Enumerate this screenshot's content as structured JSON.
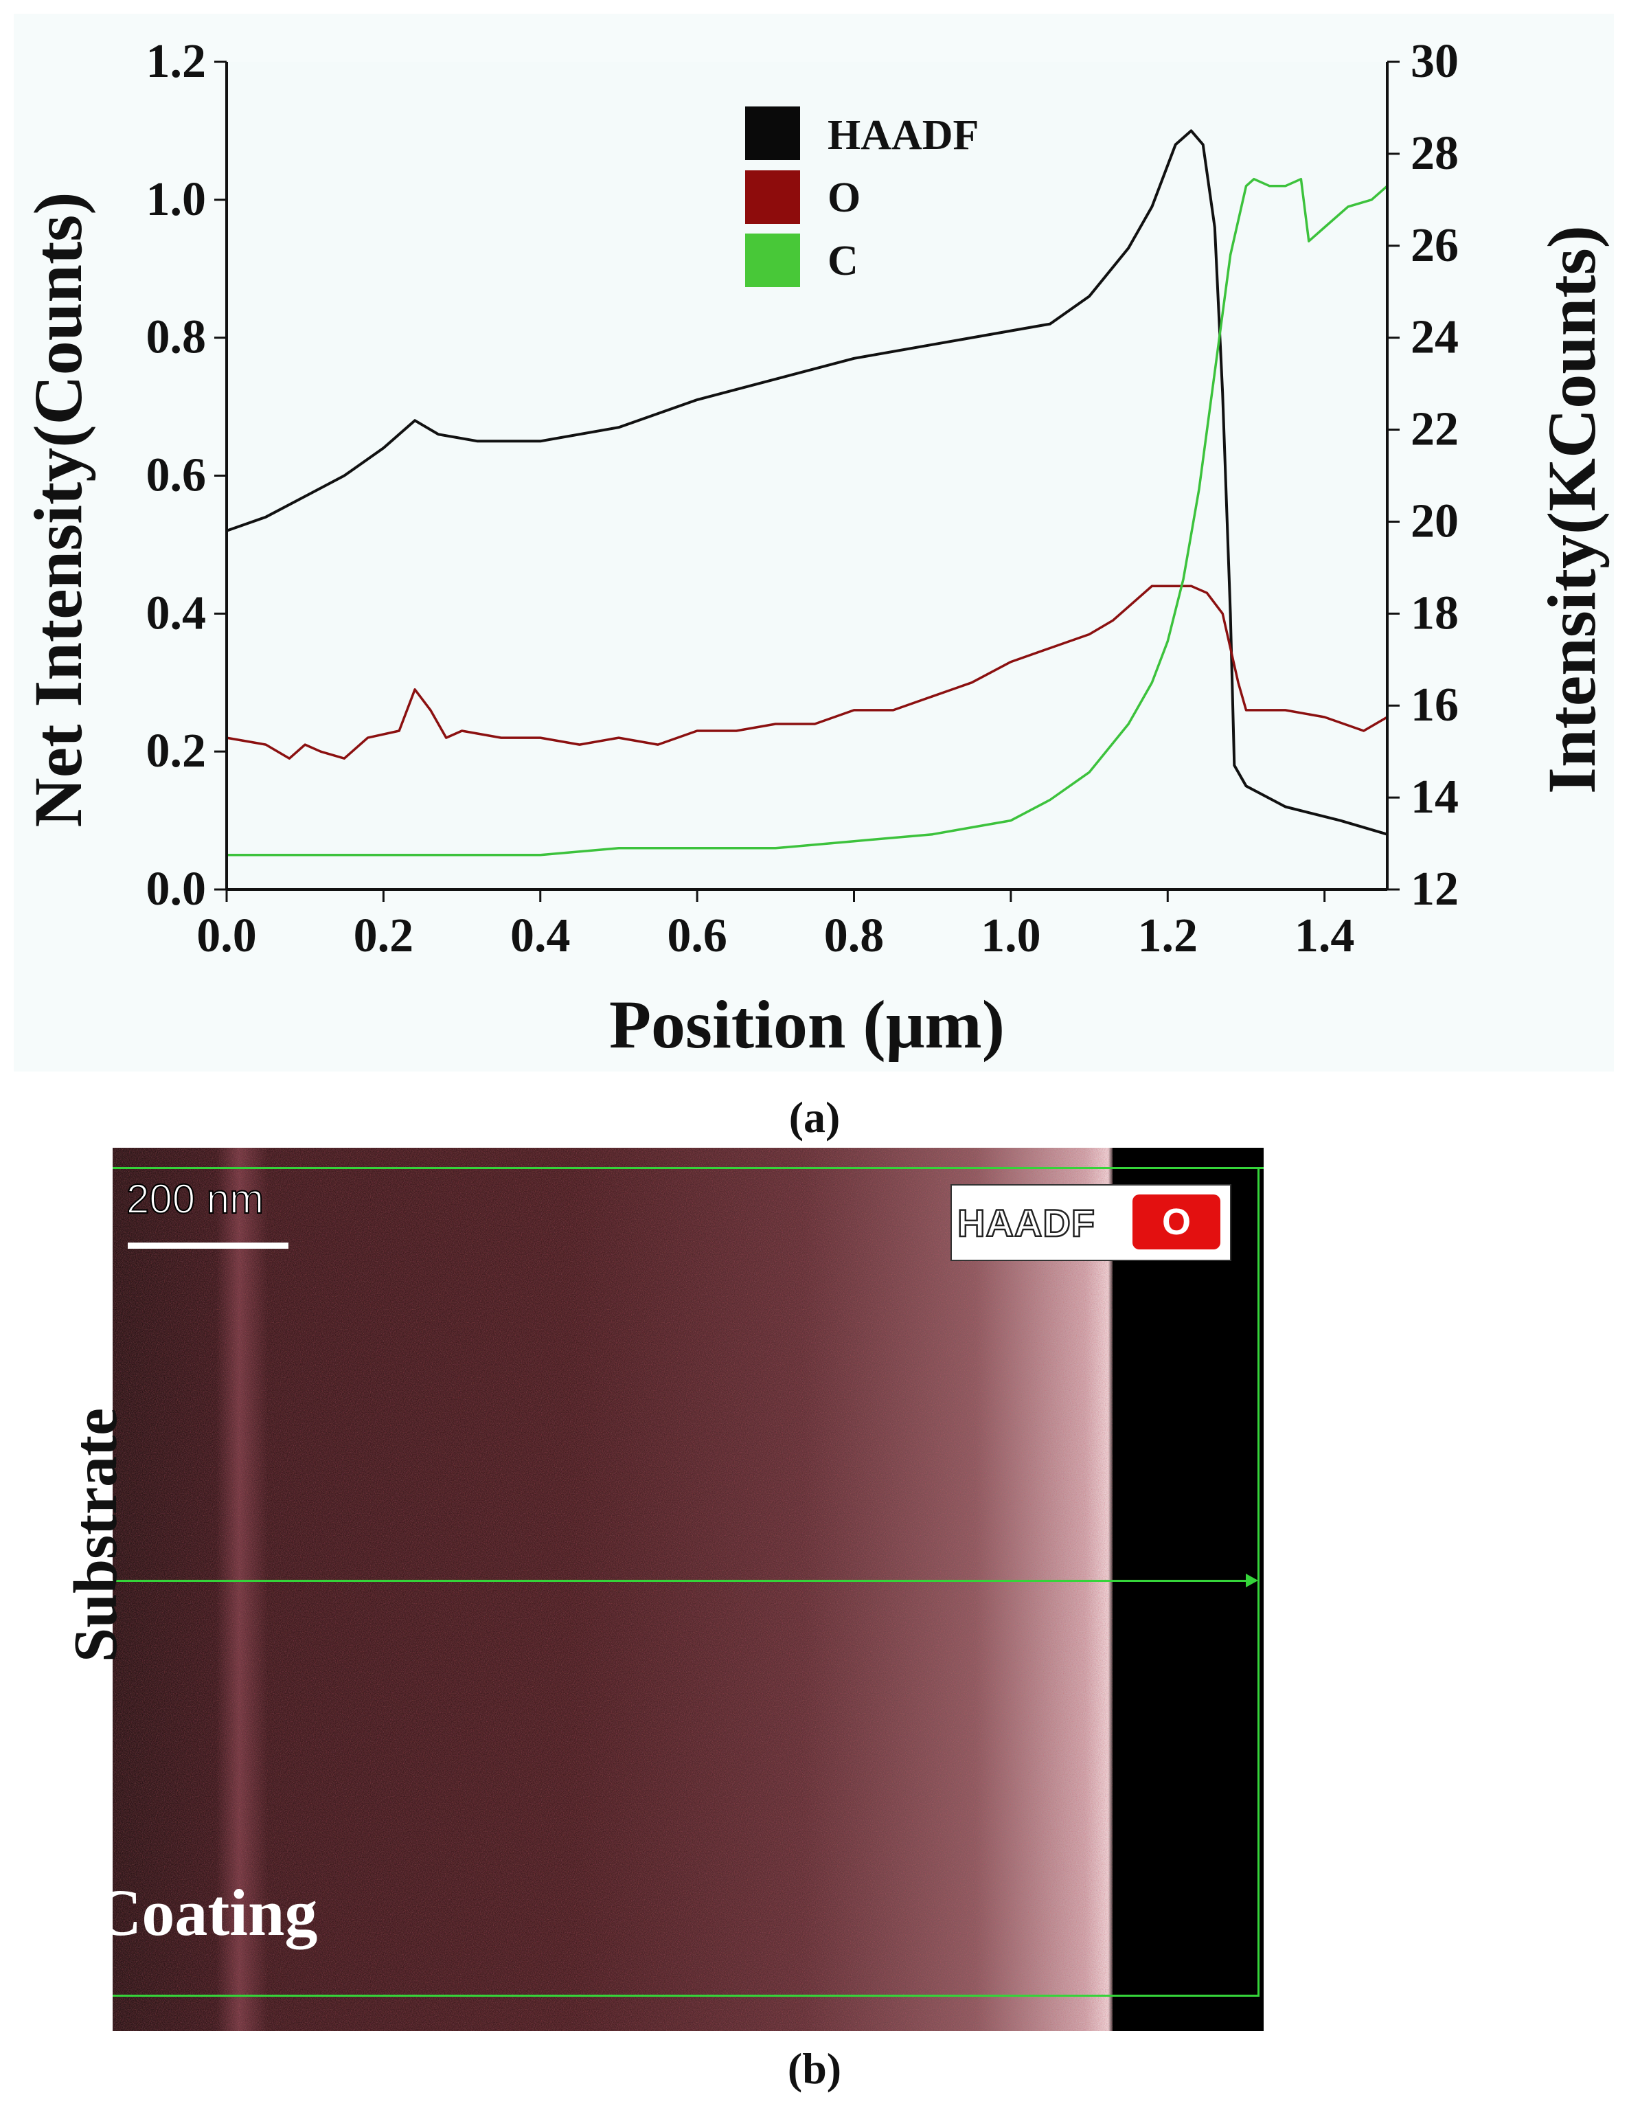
{
  "chart_data": {
    "type": "line",
    "xlabel": "Position (μm)",
    "ylabel_left": "Net Intensity(Counts)",
    "ylabel_right": "Intensity(KCounts)",
    "xlim": [
      0.0,
      1.48
    ],
    "ylim_left": [
      0.0,
      1.2
    ],
    "ylim_right": [
      12,
      30
    ],
    "xticks": [
      "0.0",
      "0.2",
      "0.4",
      "0.6",
      "0.8",
      "1.0",
      "1.2",
      "1.4"
    ],
    "yticks_left": [
      "0.0",
      "0.2",
      "0.4",
      "0.6",
      "0.8",
      "1.0",
      "1.2"
    ],
    "yticks_right": [
      "12",
      "14",
      "16",
      "18",
      "20",
      "22",
      "24",
      "26",
      "28",
      "30"
    ],
    "legend_position": "top-center",
    "grid": false,
    "series": [
      {
        "name": "HAADF",
        "color": "#111111",
        "axis": "left",
        "x": [
          0.0,
          0.05,
          0.1,
          0.15,
          0.2,
          0.22,
          0.24,
          0.27,
          0.32,
          0.4,
          0.5,
          0.6,
          0.7,
          0.8,
          0.9,
          1.0,
          1.05,
          1.1,
          1.15,
          1.18,
          1.21,
          1.23,
          1.245,
          1.26,
          1.27,
          1.28,
          1.285,
          1.3,
          1.35,
          1.42,
          1.48
        ],
        "y": [
          0.52,
          0.54,
          0.57,
          0.6,
          0.64,
          0.66,
          0.68,
          0.66,
          0.65,
          0.65,
          0.67,
          0.71,
          0.74,
          0.77,
          0.79,
          0.81,
          0.82,
          0.86,
          0.93,
          0.99,
          1.08,
          1.1,
          1.08,
          0.96,
          0.72,
          0.4,
          0.18,
          0.15,
          0.12,
          0.1,
          0.08
        ]
      },
      {
        "name": "O",
        "color": "#8b1010",
        "axis": "left",
        "x": [
          0.0,
          0.05,
          0.08,
          0.1,
          0.12,
          0.15,
          0.18,
          0.22,
          0.24,
          0.26,
          0.28,
          0.3,
          0.35,
          0.4,
          0.45,
          0.5,
          0.55,
          0.6,
          0.65,
          0.7,
          0.75,
          0.8,
          0.85,
          0.9,
          0.95,
          1.0,
          1.05,
          1.1,
          1.13,
          1.15,
          1.18,
          1.2,
          1.23,
          1.25,
          1.27,
          1.29,
          1.3,
          1.35,
          1.4,
          1.45,
          1.48
        ],
        "y": [
          0.22,
          0.21,
          0.19,
          0.21,
          0.2,
          0.19,
          0.22,
          0.23,
          0.29,
          0.26,
          0.22,
          0.23,
          0.22,
          0.22,
          0.21,
          0.22,
          0.21,
          0.23,
          0.23,
          0.24,
          0.24,
          0.26,
          0.26,
          0.28,
          0.3,
          0.33,
          0.35,
          0.37,
          0.39,
          0.41,
          0.44,
          0.44,
          0.44,
          0.43,
          0.4,
          0.3,
          0.26,
          0.26,
          0.25,
          0.23,
          0.25
        ]
      },
      {
        "name": "C",
        "color": "#3cc23c",
        "axis": "left",
        "x": [
          0.0,
          0.1,
          0.2,
          0.3,
          0.4,
          0.5,
          0.6,
          0.7,
          0.8,
          0.9,
          0.95,
          1.0,
          1.05,
          1.1,
          1.15,
          1.18,
          1.2,
          1.22,
          1.24,
          1.26,
          1.28,
          1.3,
          1.31,
          1.33,
          1.35,
          1.37,
          1.38,
          1.4,
          1.43,
          1.46,
          1.48
        ],
        "y": [
          0.05,
          0.05,
          0.05,
          0.05,
          0.05,
          0.06,
          0.06,
          0.06,
          0.07,
          0.08,
          0.09,
          0.1,
          0.13,
          0.17,
          0.24,
          0.3,
          0.36,
          0.45,
          0.58,
          0.75,
          0.92,
          1.02,
          1.03,
          1.02,
          1.02,
          1.03,
          0.94,
          0.96,
          0.99,
          1.0,
          1.02
        ]
      }
    ]
  },
  "figure": {
    "caption_a": "(a)",
    "caption_b": "(b)"
  },
  "panel_b": {
    "scale_bar_label": "200 nm",
    "legend_haadf": "HAADF",
    "legend_o": "O",
    "label_substrate": "Substrate",
    "label_coating": "Coating",
    "scan_line_color": "#35d43a"
  }
}
